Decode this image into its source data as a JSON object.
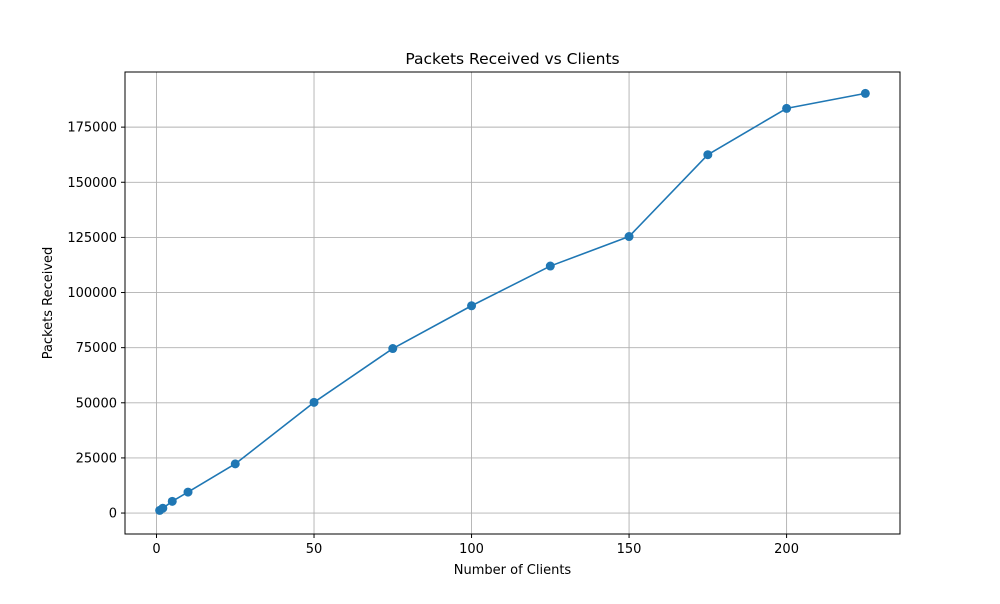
{
  "chart_data": {
    "type": "line",
    "title": "Packets Received vs Clients",
    "xlabel": "Number of Clients",
    "ylabel": "Packets Received",
    "x": [
      1,
      2,
      5,
      10,
      25,
      50,
      75,
      100,
      125,
      150,
      175,
      200,
      225
    ],
    "series": [
      {
        "values": [
          1200,
          2200,
          5300,
          9500,
          22300,
          50200,
          74600,
          94000,
          112000,
          125400,
          162500,
          183500,
          190300
        ],
        "color": "#1f77b4",
        "marker": "circle"
      }
    ],
    "xlim": [
      -10,
      236
    ],
    "ylim": [
      -9500,
      200000
    ],
    "xticks": [
      0,
      50,
      100,
      150,
      200
    ],
    "yticks": [
      0,
      25000,
      50000,
      75000,
      100000,
      125000,
      150000,
      175000
    ],
    "xtick_labels": [
      "0",
      "50",
      "100",
      "150",
      "200"
    ],
    "ytick_labels": [
      "0",
      "25000",
      "50000",
      "75000",
      "100000",
      "125000",
      "150000",
      "175000"
    ],
    "grid": true,
    "legend": false
  }
}
